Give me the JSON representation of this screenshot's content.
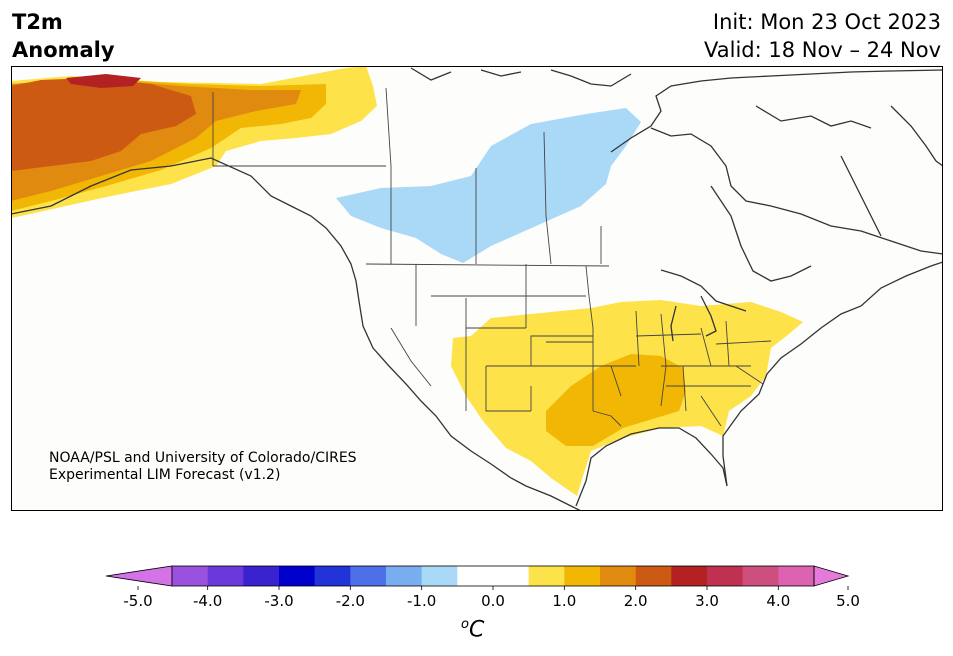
{
  "header": {
    "variable_line1": "T2m",
    "variable_line2": "Anomaly",
    "init": "Init: Mon 23 Oct 2023",
    "valid": "Valid: 18 Nov – 24 Nov"
  },
  "credit": {
    "line1": "NOAA/PSL and University of Colorado/CIRES",
    "line2": "Experimental LIM Forecast (v1.2)"
  },
  "colorbar": {
    "colors": [
      "#d473e8",
      "#9b51e0",
      "#6c37db",
      "#3a22cf",
      "#0000cc",
      "#2233d8",
      "#4d70e8",
      "#78aef0",
      "#aad9f8",
      "#ffffff",
      "#ffffff",
      "#fde24a",
      "#f2b705",
      "#e08a10",
      "#cc5a12",
      "#b22222",
      "#c03050",
      "#cc4f7e",
      "#dd62b0",
      "#e67ad8"
    ],
    "ticks": [
      "-5.0",
      "-4.0",
      "-3.0",
      "-2.0",
      "-1.0",
      "0.0",
      "1.0",
      "2.0",
      "3.0",
      "4.0",
      "5.0"
    ],
    "unit_symbol": "o",
    "unit_letter": "C",
    "min": -5.0,
    "max": 5.0,
    "step": 0.5
  },
  "map_colors": {
    "yellow": "#fde24a",
    "gold": "#f2b705",
    "orange": "#e08a10",
    "dark_orange": "#cc5a12",
    "red": "#b22222",
    "light_blue": "#aad9f8",
    "ocean": "#ffffff",
    "coast": "#333333"
  }
}
